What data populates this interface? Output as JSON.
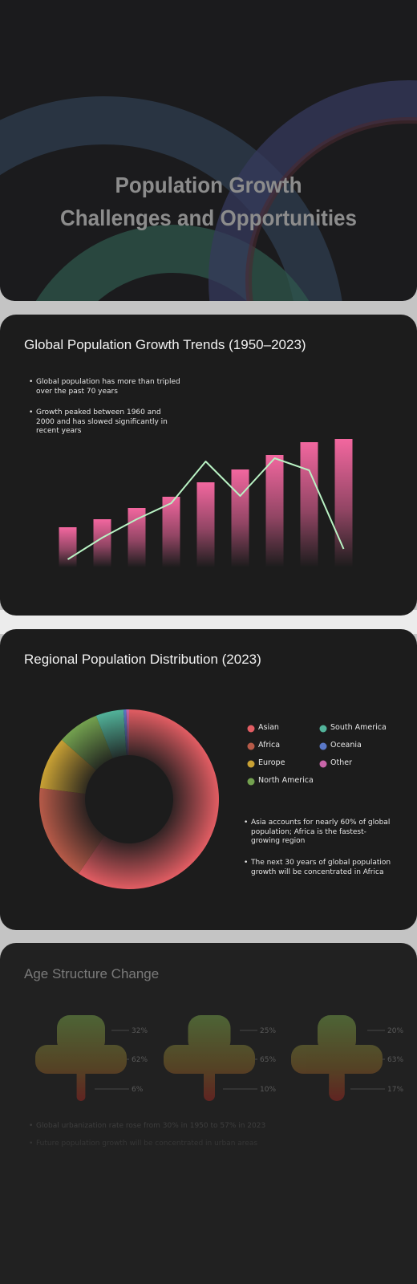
{
  "hero": {
    "title_lines": [
      "Population Growth",
      "Challenges and Opportunities"
    ]
  },
  "chart_data": [
    {
      "type": "bar",
      "title": "Global Population Growth Trends (1950–2023)",
      "notes": [
        "Global population has more than tripled over the past 70 years",
        "Growth peaked between 1960 and 2000 and has slowed significantly in recent years"
      ],
      "values": [
        2.5,
        3.0,
        3.7,
        4.4,
        5.3,
        6.1,
        7.0,
        7.8,
        8.0
      ],
      "color": "#f2679f",
      "ylim": [
        0,
        8.5
      ],
      "line": {
        "color": "#b9f3c4",
        "values": [
          10,
          37,
          60,
          80,
          132,
          89,
          136,
          121,
          23
        ],
        "axis": "y2"
      },
      "y2lim": [
        0,
        170
      ]
    },
    {
      "type": "donut",
      "title": "Regional Population Distribution (2023)",
      "categories": [
        "Asian",
        "Africa",
        "Europe",
        "North America",
        "South America",
        "Oceania",
        "Other"
      ],
      "values": [
        59.5,
        17.5,
        9.5,
        7.5,
        5,
        0.5,
        0.5
      ],
      "colors": [
        "#e25d63",
        "#b65a48",
        "#c9a134",
        "#73a14f",
        "#52b39a",
        "#5a78c8",
        "#c865a8"
      ],
      "notes": [
        "Asia accounts for nearly 60% of global population; Africa is the fastest-growing region",
        "The next 30 years of global population growth will be concentrated in Africa"
      ]
    },
    {
      "type": "age_shape",
      "title": "Age Structure Change",
      "groups": [
        {
          "values": [
            32,
            62,
            6
          ],
          "value_labels": [
            "32%",
            "62%",
            "6%"
          ]
        },
        {
          "values": [
            25,
            65,
            10
          ],
          "value_labels": [
            "25%",
            "65%",
            "10%"
          ]
        },
        {
          "values": [
            20,
            63,
            17
          ],
          "value_labels": [
            "20%",
            "63%",
            "17%"
          ]
        }
      ],
      "notes": [
        "Global urbanization rate rose from 30% in 1950 to 57% in 2023",
        "Future population growth will be concentrated in urban areas"
      ]
    }
  ]
}
